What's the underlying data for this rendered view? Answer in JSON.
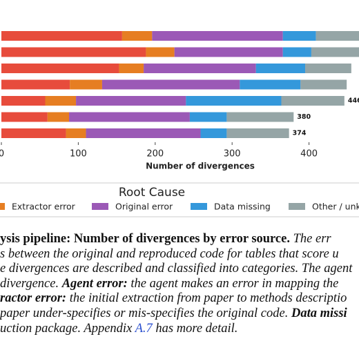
{
  "chart_data": {
    "type": "stacked-bar-horizontal",
    "series": [
      {
        "color": "#e74c3c",
        "values": [
          157,
          188,
          153,
          89,
          57,
          60,
          84
        ]
      },
      {
        "name": "Extractor error",
        "color": "#e67e22",
        "values": [
          39,
          37,
          32,
          42,
          40,
          28,
          26
        ]
      },
      {
        "name": "Original error",
        "color": "#9b59b6",
        "values": [
          170,
          141,
          146,
          179,
          143,
          157,
          149
        ]
      },
      {
        "name": "Data missing",
        "color": "#3498db",
        "values": [
          43,
          37,
          64,
          79,
          124,
          48,
          34
        ]
      },
      {
        "name": "Other / unk",
        "color": "#95a5a6",
        "values": [
          70,
          70,
          60,
          60,
          82,
          87,
          81
        ]
      }
    ],
    "totals": [
      null,
      null,
      null,
      null,
      446,
      380,
      374
    ],
    "xlim": [
      0,
      465
    ],
    "xticks": [
      0,
      100,
      200,
      300,
      400
    ],
    "xlabel": "Number of divergences",
    "legend_title": "Root Cause"
  },
  "caption": {
    "lines": [
      [
        "ysis pipeline: Number of divergences by error source.",
        " The err"
      ],
      [
        "s between the original and reproduced code for tables that score u"
      ],
      [
        "e divergences are described and classified into categories. The agent"
      ],
      [
        "divergence. ",
        "Agent error:",
        " the agent makes an error in mapping the"
      ],
      [
        "ractor error:",
        " the initial extraction from paper to methods descriptio"
      ],
      [
        "paper under-specifies or mis-specifies the original code. ",
        "Data missi"
      ],
      [
        "uction package. Appendix ",
        "A.7",
        " has more detail."
      ]
    ]
  }
}
